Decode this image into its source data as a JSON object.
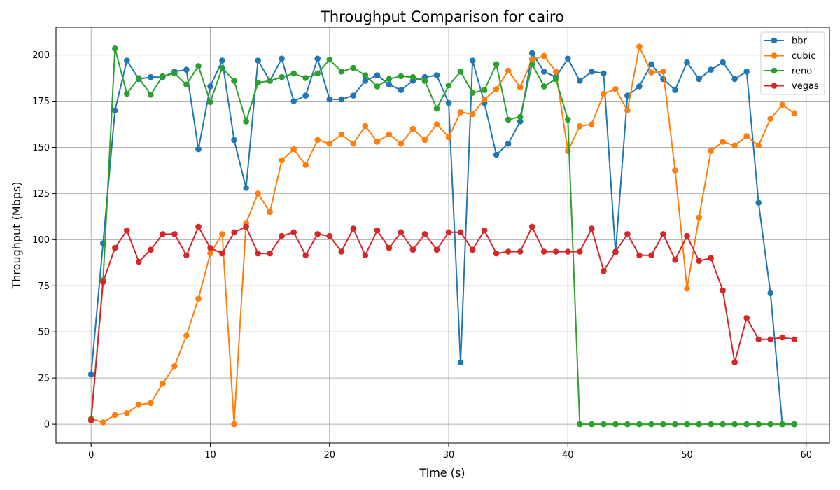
{
  "chart_data": {
    "type": "line",
    "title": "Throughput Comparison for cairo",
    "xlabel": "Time (s)",
    "ylabel": "Throughput (Mbps)",
    "xlim": [
      -2.95,
      61.95
    ],
    "ylim": [
      -10.2,
      215
    ],
    "xticks": [
      0,
      10,
      20,
      30,
      40,
      50,
      60
    ],
    "yticks": [
      0,
      25,
      50,
      75,
      100,
      125,
      150,
      175,
      200
    ],
    "grid": true,
    "legend_position": "top-right",
    "x": [
      0,
      1,
      2,
      3,
      4,
      5,
      6,
      7,
      8,
      9,
      10,
      11,
      12,
      13,
      14,
      15,
      16,
      17,
      18,
      19,
      20,
      21,
      22,
      23,
      24,
      25,
      26,
      27,
      28,
      29,
      30,
      31,
      32,
      33,
      34,
      35,
      36,
      37,
      38,
      39,
      40,
      41,
      42,
      43,
      44,
      45,
      46,
      47,
      48,
      49,
      50,
      51,
      52,
      53,
      54,
      55,
      56,
      57,
      58,
      59
    ],
    "series": [
      {
        "name": "bbr",
        "color": "#1f77b4",
        "values": [
          27,
          98,
          170,
          197,
          187,
          188,
          188,
          191,
          192,
          149,
          183,
          197,
          154,
          128,
          197,
          186,
          198,
          175,
          178,
          198,
          176,
          176,
          178,
          186,
          189,
          184,
          181,
          186,
          188,
          189,
          174,
          33.5,
          197,
          174,
          146,
          152,
          164,
          201,
          191,
          188,
          198,
          186,
          191,
          190,
          93,
          178,
          183,
          195,
          187,
          181,
          196,
          187,
          192,
          196,
          187,
          191,
          120,
          71,
          0,
          0
        ]
      },
      {
        "name": "cubic",
        "color": "#ff7f0e",
        "values": [
          3,
          1,
          5,
          6,
          10.5,
          11.5,
          22,
          31.5,
          48,
          68,
          92.5,
          103,
          0,
          109,
          125,
          115,
          143,
          149,
          140.5,
          154,
          152,
          157,
          152,
          161.5,
          153,
          157,
          152,
          160,
          154,
          162.5,
          155.5,
          169,
          168,
          176,
          181.5,
          191.5,
          182.5,
          197.5,
          199.5,
          191,
          148,
          161.5,
          162.5,
          179,
          181.5,
          170,
          204.5,
          190.5,
          191,
          137.5,
          73.5,
          112,
          148,
          153,
          151,
          156,
          151,
          165.5,
          173,
          168.5
        ]
      },
      {
        "name": "reno",
        "color": "#2ca02c",
        "values": [
          2.5,
          78,
          203.5,
          179,
          187.5,
          178.5,
          188.5,
          190,
          184,
          194,
          174.5,
          193,
          186,
          164,
          185,
          186,
          188,
          190,
          187.5,
          190,
          197.5,
          191,
          193,
          189,
          183,
          187,
          188.5,
          188,
          186,
          171,
          183.5,
          191,
          179.5,
          181,
          195,
          165,
          166.5,
          195,
          183,
          187,
          165,
          0,
          0,
          0,
          0,
          0,
          0,
          0,
          0,
          0,
          0,
          0,
          0,
          0,
          0,
          0,
          0,
          0,
          0,
          0
        ]
      },
      {
        "name": "vegas",
        "color": "#d62728",
        "values": [
          2,
          77,
          95.5,
          105,
          88,
          94.5,
          103,
          103,
          91.5,
          107,
          95.5,
          92.5,
          104,
          107,
          92.5,
          92.5,
          102,
          104,
          91.5,
          103,
          102,
          93.5,
          106,
          91.5,
          105,
          95.5,
          104,
          94.5,
          103,
          94.5,
          104,
          104,
          94.5,
          105,
          92.5,
          93.5,
          93.5,
          107,
          93.5,
          93.5,
          93.5,
          93.5,
          106,
          83,
          93.5,
          103,
          91.5,
          91.5,
          103,
          89,
          102,
          88.5,
          90,
          72.5,
          33.5,
          57.5,
          46,
          46,
          47,
          46
        ]
      }
    ]
  }
}
